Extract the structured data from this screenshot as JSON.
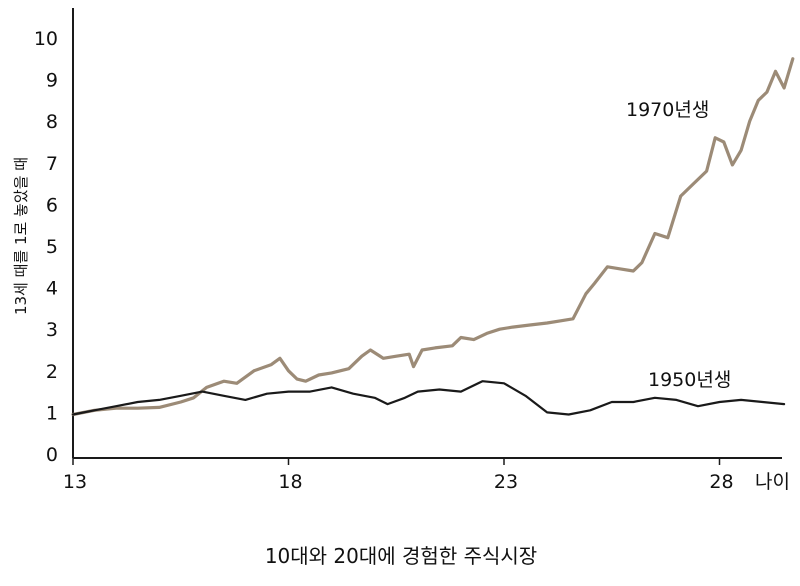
{
  "chart_data": {
    "type": "line",
    "title": "10대와 20대에 경험한 주식시장",
    "ylabel": "13세 때를 1로 놓았을 때",
    "xlabel": "나이",
    "xlim": [
      13,
      29.8
    ],
    "ylim": [
      0,
      10
    ],
    "x_ticks": [
      "13",
      "18",
      "23",
      "28"
    ],
    "y_ticks": [
      "0",
      "1",
      "2",
      "3",
      "4",
      "5",
      "6",
      "7",
      "8",
      "9",
      "10"
    ],
    "series": [
      {
        "name": "1970년생",
        "color": "#9c8b77",
        "x": [
          13.0,
          13.5,
          14.0,
          14.5,
          15.0,
          15.5,
          15.8,
          16.1,
          16.5,
          16.8,
          17.2,
          17.6,
          17.8,
          18.0,
          18.2,
          18.4,
          18.7,
          19.0,
          19.4,
          19.7,
          19.9,
          20.2,
          20.5,
          20.8,
          20.9,
          21.1,
          21.4,
          21.8,
          22.0,
          22.3,
          22.6,
          22.9,
          23.2,
          23.6,
          24.0,
          24.3,
          24.6,
          24.9,
          25.1,
          25.4,
          25.7,
          26.0,
          26.2,
          26.5,
          26.8,
          27.1,
          27.4,
          27.7,
          27.9,
          28.1,
          28.3,
          28.5,
          28.7,
          28.9,
          29.1,
          29.3,
          29.5,
          29.7
        ],
        "values": [
          0.95,
          1.05,
          1.1,
          1.1,
          1.12,
          1.25,
          1.35,
          1.6,
          1.75,
          1.7,
          2.0,
          2.15,
          2.3,
          2.0,
          1.8,
          1.75,
          1.9,
          1.95,
          2.05,
          2.35,
          2.5,
          2.3,
          2.35,
          2.4,
          2.1,
          2.5,
          2.55,
          2.6,
          2.8,
          2.75,
          2.9,
          3.0,
          3.05,
          3.1,
          3.15,
          3.2,
          3.25,
          3.85,
          4.1,
          4.5,
          4.45,
          4.4,
          4.6,
          5.3,
          5.2,
          6.2,
          6.5,
          6.8,
          7.6,
          7.5,
          6.95,
          7.3,
          8.0,
          8.5,
          8.7,
          9.2,
          8.8,
          9.5
        ]
      },
      {
        "name": "1950년생",
        "color": "#1a1a1a",
        "x": [
          13.0,
          13.5,
          14.0,
          14.5,
          15.0,
          15.5,
          16.0,
          16.5,
          17.0,
          17.5,
          18.0,
          18.5,
          19.0,
          19.5,
          20.0,
          20.3,
          20.7,
          21.0,
          21.5,
          22.0,
          22.5,
          23.0,
          23.5,
          24.0,
          24.5,
          25.0,
          25.5,
          26.0,
          26.5,
          27.0,
          27.5,
          28.0,
          28.5,
          29.0,
          29.5
        ],
        "values": [
          0.95,
          1.05,
          1.15,
          1.25,
          1.3,
          1.4,
          1.5,
          1.4,
          1.3,
          1.45,
          1.5,
          1.5,
          1.6,
          1.45,
          1.35,
          1.2,
          1.35,
          1.5,
          1.55,
          1.5,
          1.75,
          1.7,
          1.4,
          1.0,
          0.95,
          1.05,
          1.25,
          1.25,
          1.35,
          1.3,
          1.15,
          1.25,
          1.3,
          1.25,
          1.2
        ]
      }
    ]
  }
}
